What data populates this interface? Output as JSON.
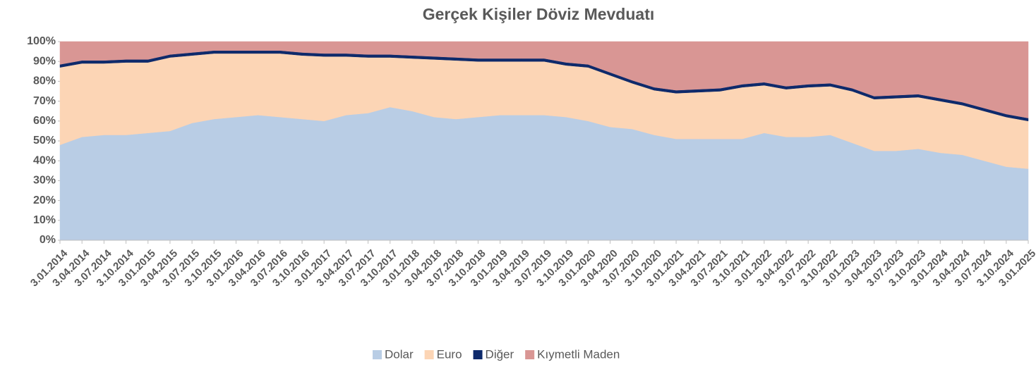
{
  "chart_data": {
    "type": "stacked_area_percent",
    "title": "Gerçek Kişiler Döviz Mevduatı",
    "categories": [
      "3.01.2014",
      "3.04.2014",
      "3.07.2014",
      "3.10.2014",
      "3.01.2015",
      "3.04.2015",
      "3.07.2015",
      "3.10.2015",
      "3.01.2016",
      "3.04.2016",
      "3.07.2016",
      "3.10.2016",
      "3.01.2017",
      "3.04.2017",
      "3.07.2017",
      "3.10.2017",
      "3.01.2018",
      "3.04.2018",
      "3.07.2018",
      "3.10.2018",
      "3.01.2019",
      "3.04.2019",
      "3.07.2019",
      "3.10.2019",
      "3.01.2020",
      "3.04.2020",
      "3.07.2020",
      "3.10.2020",
      "3.01.2021",
      "3.04.2021",
      "3.07.2021",
      "3.10.2021",
      "3.01.2022",
      "3.04.2022",
      "3.07.2022",
      "3.10.2022",
      "3.01.2023",
      "3.04.2023",
      "3.07.2023",
      "3.10.2023",
      "3.01.2024",
      "3.04.2024",
      "3.07.2024",
      "3.10.2024",
      "3.01.2025"
    ],
    "series": [
      {
        "name": "Dolar",
        "color": "#b9cde5",
        "values": [
          48,
          52,
          53,
          53,
          54,
          55,
          59,
          61,
          62,
          63,
          62,
          61,
          60,
          63,
          64,
          67,
          65,
          62,
          61,
          62,
          63,
          63,
          63,
          62,
          60,
          57,
          56,
          53,
          51,
          51,
          51,
          51,
          54,
          52,
          52,
          53,
          49,
          45,
          45,
          46,
          44,
          43,
          40,
          37,
          36
        ]
      },
      {
        "name": "Euro",
        "color": "#fcd5b5",
        "values": [
          39,
          37,
          36,
          36.5,
          35.5,
          37,
          34,
          33,
          32,
          31,
          32,
          32,
          32.5,
          29.5,
          28,
          25,
          26.5,
          29,
          29.5,
          28,
          27,
          27,
          27,
          26,
          27,
          26,
          23,
          22.5,
          23,
          23.5,
          24,
          26,
          24,
          24,
          25,
          24.5,
          26,
          26,
          26.5,
          26,
          26,
          25,
          25,
          25,
          24
        ]
      },
      {
        "name": "Diğer",
        "color": "#0e2a6b",
        "values": [
          1.5,
          1.5,
          1.5,
          1.5,
          1.5,
          1.5,
          1.5,
          1.5,
          1.5,
          1.5,
          1.5,
          1.5,
          1.5,
          1.5,
          1.5,
          1.5,
          1.5,
          1.5,
          1.5,
          1.5,
          1.5,
          1.5,
          1.5,
          1.5,
          1.5,
          1.5,
          1.5,
          1.5,
          1.5,
          1.5,
          1.5,
          1.5,
          1.5,
          1.5,
          1.5,
          1.5,
          1.5,
          1.5,
          1.5,
          1.5,
          1.5,
          1.5,
          1.5,
          1.5,
          1.5
        ]
      },
      {
        "name": "Kıymetli Maden",
        "color": "#d99694",
        "values": [
          11.5,
          9.5,
          9.5,
          9,
          9,
          6.5,
          5.5,
          4.5,
          4.5,
          4.5,
          4.5,
          5.5,
          6,
          6,
          6.5,
          6.5,
          7,
          7.5,
          8,
          8.5,
          8.5,
          8.5,
          8.5,
          10.5,
          11.5,
          15.5,
          19.5,
          23,
          24.5,
          24,
          23.5,
          21.5,
          20.5,
          22.5,
          21.5,
          21,
          23.5,
          27.5,
          27,
          26.5,
          28.5,
          30.5,
          33.5,
          36.5,
          38.5
        ]
      }
    ],
    "ylim": [
      0,
      100
    ],
    "yticks": [
      {
        "value": 0,
        "label": "0%"
      },
      {
        "value": 10,
        "label": "10%"
      },
      {
        "value": 20,
        "label": "20%"
      },
      {
        "value": 30,
        "label": "30%"
      },
      {
        "value": 40,
        "label": "40%"
      },
      {
        "value": 50,
        "label": "50%"
      },
      {
        "value": 60,
        "label": "60%"
      },
      {
        "value": 70,
        "label": "70%"
      },
      {
        "value": 80,
        "label": "80%"
      },
      {
        "value": 90,
        "label": "90%"
      },
      {
        "value": 100,
        "label": "100%"
      }
    ],
    "legend": "bottom"
  }
}
